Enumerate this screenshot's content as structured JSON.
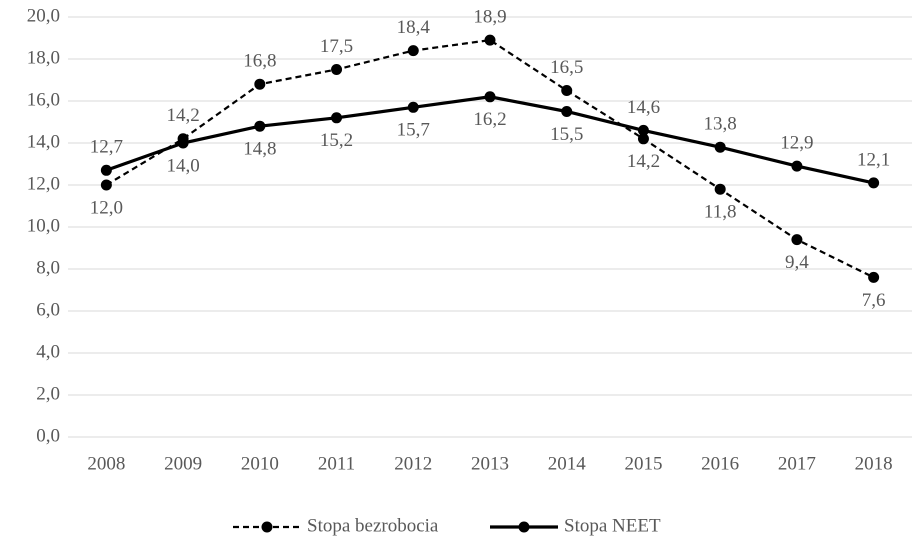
{
  "chart_data": {
    "type": "line",
    "categories": [
      "2008",
      "2009",
      "2010",
      "2011",
      "2012",
      "2013",
      "2014",
      "2015",
      "2016",
      "2017",
      "2018"
    ],
    "series": [
      {
        "name": "Stopa bezrobocia",
        "color": "#000000",
        "dash": true,
        "values": [
          12.0,
          14.2,
          16.8,
          17.5,
          18.4,
          18.9,
          16.5,
          14.2,
          11.8,
          9.4,
          7.6
        ],
        "value_labels": [
          "12,0",
          "14,2",
          "16,8",
          "17,5",
          "18,4",
          "18,9",
          "16,5",
          "14,2",
          "11,8",
          "9,4",
          "7,6"
        ]
      },
      {
        "name": "Stopa NEET",
        "color": "#000000",
        "dash": false,
        "values": [
          12.7,
          14.0,
          14.8,
          15.2,
          15.7,
          16.2,
          15.5,
          14.6,
          13.8,
          12.9,
          12.1
        ],
        "value_labels": [
          "12,7",
          "14,0",
          "14,8",
          "15,2",
          "15,7",
          "16,2",
          "15,5",
          "14,6",
          "13,8",
          "12,9",
          "12,1"
        ]
      }
    ],
    "ylim": [
      0,
      20
    ],
    "yticks": [
      {
        "value": 0,
        "label": "0,0"
      },
      {
        "value": 2,
        "label": "2,0"
      },
      {
        "value": 4,
        "label": "4,0"
      },
      {
        "value": 6,
        "label": "6,0"
      },
      {
        "value": 8,
        "label": "8,0"
      },
      {
        "value": 10,
        "label": "10,0"
      },
      {
        "value": 12,
        "label": "12,0"
      },
      {
        "value": 14,
        "label": "14,0"
      },
      {
        "value": 16,
        "label": "16,0"
      },
      {
        "value": 18,
        "label": "18,0"
      },
      {
        "value": 20,
        "label": "20,0"
      }
    ],
    "grid": true,
    "legend": "bottom"
  }
}
